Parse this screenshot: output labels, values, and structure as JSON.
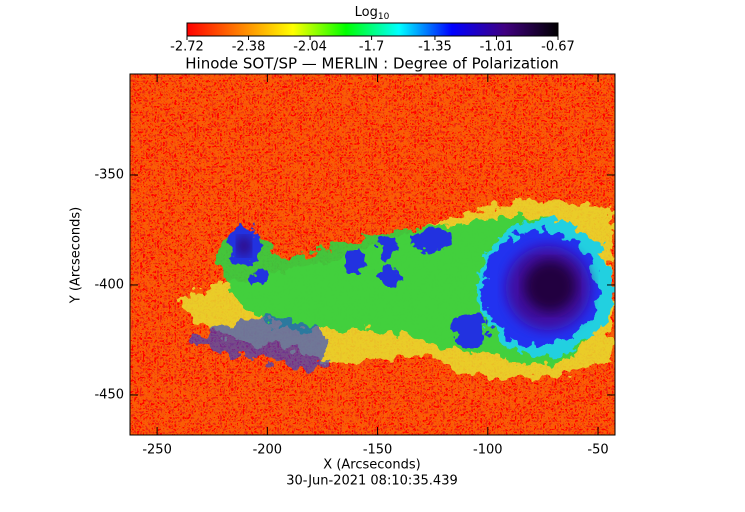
{
  "chart_data": {
    "type": "heatmap",
    "title": "Hinode SOT/SP — MERLIN : Degree of Polarization",
    "colorbar_label": "Log",
    "colorbar_label_subscript": "10",
    "colorbar_lim": [
      -2.72,
      -0.67
    ],
    "colorbar_ticks": [
      -2.72,
      -2.38,
      -2.04,
      -1.7,
      -1.35,
      -1.01,
      -0.67
    ],
    "colorbar_colors": [
      "#ff0000",
      "#ff8000",
      "#ffff00",
      "#00ff00",
      "#00ffff",
      "#0000ff",
      "#400080",
      "#000000"
    ],
    "xlabel": "X (Arcseconds)",
    "ylabel": "Y (Arcseconds)",
    "xlim": [
      -262.3,
      -42.3
    ],
    "ylim": [
      -468.2,
      -304.1
    ],
    "xticks": [
      -250,
      -200,
      -150,
      -100,
      -50
    ],
    "yticks": [
      -450,
      -400,
      -350
    ],
    "timestamp": "30-Jun-2021 08:10:35.439"
  }
}
